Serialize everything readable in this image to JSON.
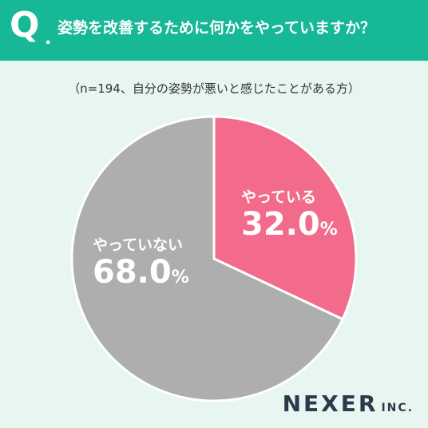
{
  "header": {
    "q_mark": "Q",
    "q_dot": ".",
    "question": "姿勢を改善するために何かをやっていますか？"
  },
  "sample_note": "（n=194、自分の姿勢が悪いと感じたことがある方）",
  "colors": {
    "header_bg": "#16b896",
    "page_bg": "#e8f6f1",
    "slice_yes": "#f26b8a",
    "slice_no": "#aeaeae"
  },
  "chart_data": {
    "type": "pie",
    "title": "姿勢を改善するために何かをやっていますか？",
    "slices": [
      {
        "label": "やっている",
        "value": 32.0,
        "display": "32.0",
        "unit": "%",
        "color": "#f26b8a"
      },
      {
        "label": "やっていない",
        "value": 68.0,
        "display": "68.0",
        "unit": "%",
        "color": "#aeaeae"
      }
    ]
  },
  "logo": {
    "main": "NEXER",
    "suffix": "INC."
  }
}
